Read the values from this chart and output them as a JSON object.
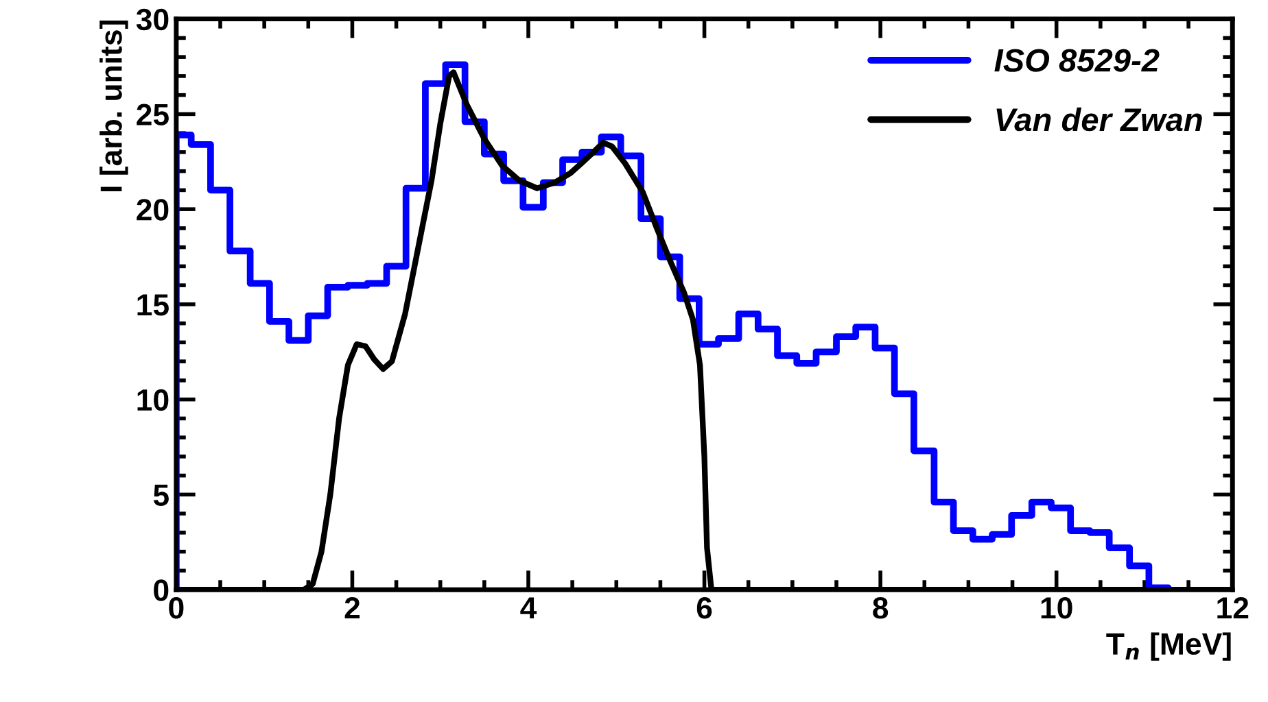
{
  "chart_data": {
    "type": "step",
    "xlabel": "T$_{n}$ [MeV]",
    "ylabel": "I [arb. units]",
    "xlim": [
      0,
      12
    ],
    "xticks": [
      0,
      2,
      4,
      6,
      8,
      10,
      12
    ],
    "ylim": [
      0,
      30
    ],
    "yticks": [
      0,
      5,
      10,
      15,
      20,
      25,
      30
    ],
    "legend": "top right",
    "grid": false,
    "series": [
      {
        "name": "ISO 8529-2",
        "color": "#0000ff",
        "x": [
          0,
          0,
          0.17,
          0.39,
          0.61,
          0.84,
          1.06,
          1.28,
          1.5,
          1.72,
          1.95,
          2.17,
          2.39,
          2.61,
          2.83,
          3.06,
          3.28,
          3.5,
          3.72,
          3.94,
          4.17,
          4.39,
          4.61,
          4.83,
          5.05,
          5.28,
          5.5,
          5.72,
          5.94,
          6.16,
          6.39,
          6.61,
          6.83,
          7.05,
          7.27,
          7.5,
          7.72,
          7.94,
          8.16,
          8.38,
          8.61,
          8.83,
          9.05,
          9.27,
          9.49,
          9.72,
          9.94,
          10.16,
          10.38,
          10.6,
          10.83,
          11.05,
          11.27
        ],
        "values": [
          0,
          23.9,
          23.4,
          21.0,
          17.8,
          16.1,
          14.1,
          13.1,
          14.4,
          15.9,
          16.0,
          16.1,
          17.0,
          21.1,
          26.6,
          27.6,
          24.6,
          22.9,
          21.5,
          20.1,
          21.4,
          22.6,
          23.0,
          23.8,
          22.8,
          19.5,
          17.5,
          15.3,
          12.9,
          13.2,
          14.5,
          13.7,
          12.3,
          11.9,
          12.5,
          13.3,
          13.8,
          12.7,
          10.3,
          7.3,
          4.6,
          3.1,
          2.65,
          2.9,
          3.9,
          4.6,
          4.3,
          3.1,
          3.0,
          2.2,
          1.25,
          0.1,
          0
        ]
      },
      {
        "name": "Van der Zwan",
        "type": "line",
        "color": "#000000",
        "line_style": "solid",
        "x": [
          0,
          1.35,
          1.45,
          1.55,
          1.65,
          1.75,
          1.85,
          1.95,
          2.05,
          2.15,
          2.25,
          2.35,
          2.45,
          2.6,
          2.75,
          2.9,
          3.0,
          3.1,
          3.15,
          3.3,
          3.5,
          3.7,
          3.9,
          4.1,
          4.3,
          4.48,
          4.6,
          4.74,
          4.85,
          4.95,
          5.1,
          5.3,
          5.46,
          5.61,
          5.77,
          5.87,
          5.95,
          6.0,
          6.03,
          6.08,
          6.15,
          6.28,
          12
        ],
        "values": [
          0,
          0,
          0,
          0.3,
          2.0,
          5.0,
          9.0,
          11.8,
          12.9,
          12.8,
          12.1,
          11.6,
          12.0,
          14.5,
          18.0,
          21.5,
          24.5,
          27.0,
          27.2,
          25.5,
          23.7,
          22.3,
          21.5,
          21.1,
          21.4,
          21.9,
          22.4,
          23.0,
          23.5,
          23.3,
          22.4,
          20.9,
          19.0,
          17.3,
          15.6,
          14.2,
          11.8,
          7.0,
          2.2,
          0,
          0,
          0,
          0
        ]
      }
    ]
  }
}
